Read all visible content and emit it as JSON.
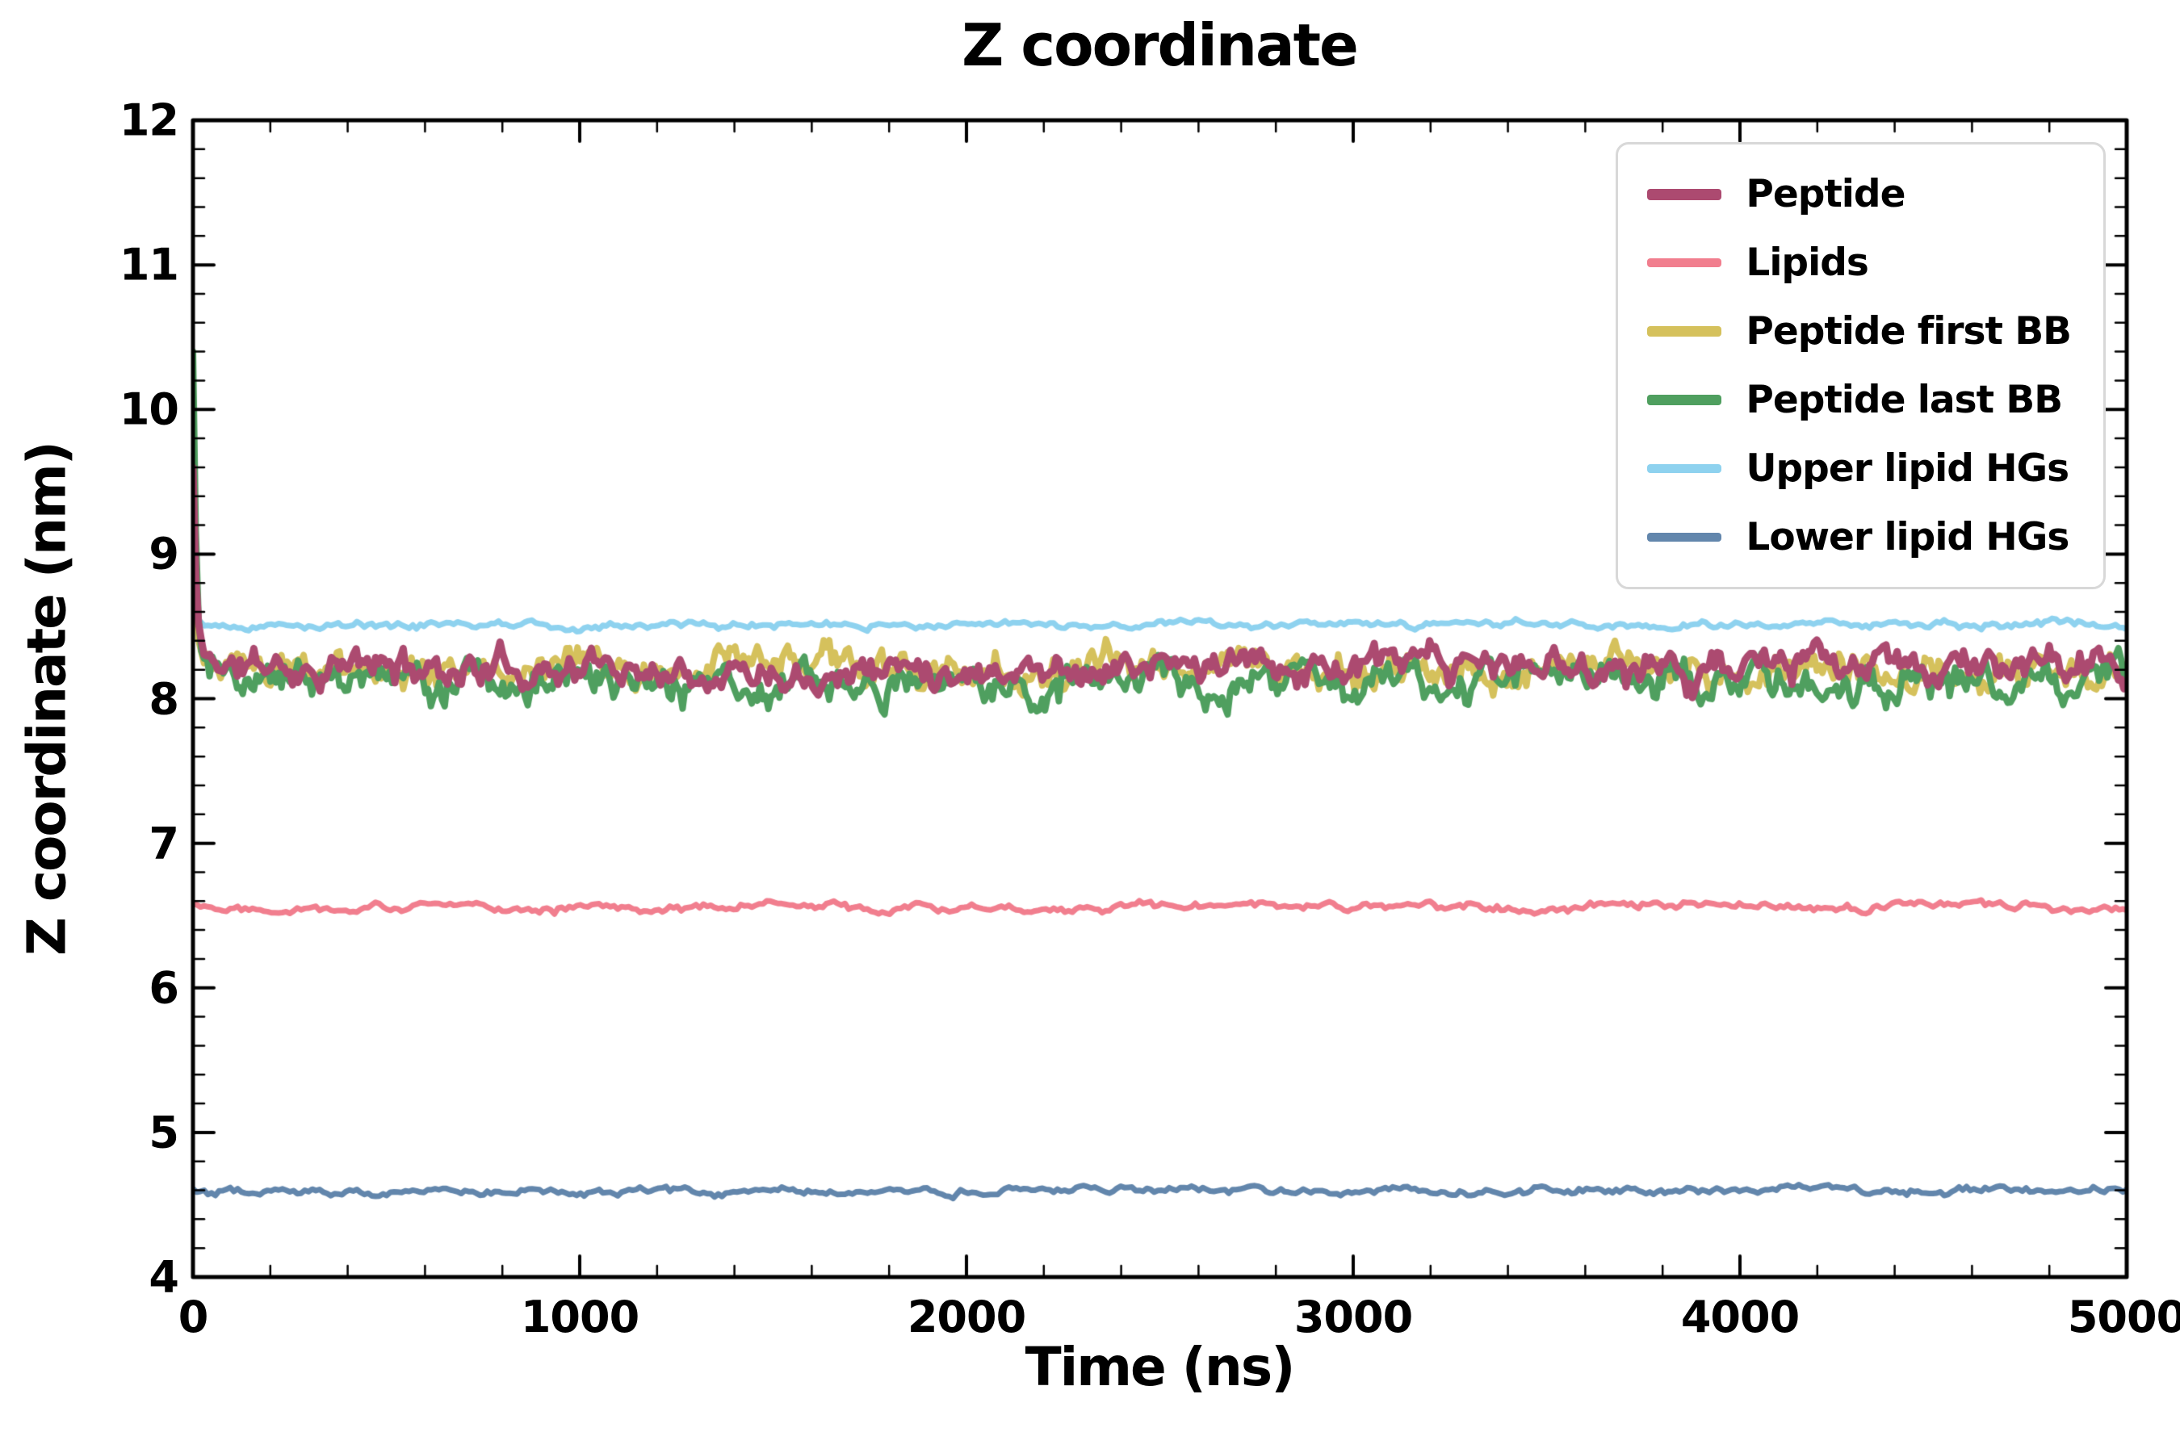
{
  "chart_data": {
    "type": "line",
    "title": "Z coordinate",
    "xlabel": "Time (ns)",
    "ylabel": "Z coordinate (nm)",
    "xlim": [
      0,
      5000
    ],
    "ylim": [
      4,
      12
    ],
    "xticks": [
      0,
      1000,
      2000,
      3000,
      4000,
      5000
    ],
    "yticks": [
      4,
      5,
      6,
      7,
      8,
      9,
      10,
      11,
      12
    ],
    "x_minor_step": 200,
    "y_minor_step": 0.2,
    "grid": false,
    "legend": {
      "position": "upper right"
    },
    "series": [
      {
        "name": "Peptide",
        "color": "#ac4a70",
        "mean": 8.22,
        "amplitude": 0.13,
        "start_value": 9.6,
        "line_width": 9,
        "n_points": 700,
        "seed": 11
      },
      {
        "name": "Lipids",
        "color": "#f17e8e",
        "mean": 6.56,
        "amplitude": 0.035,
        "start_value": 6.58,
        "line_width": 7,
        "n_points": 520,
        "seed": 22
      },
      {
        "name": "Peptide first BB",
        "color": "#d5c15c",
        "mean": 8.19,
        "amplitude": 0.14,
        "start_value": 9.35,
        "line_width": 8,
        "n_points": 700,
        "seed": 33
      },
      {
        "name": "Peptide last BB",
        "color": "#4f9f5f",
        "mean": 8.12,
        "amplitude": 0.15,
        "start_value": 10.4,
        "line_width": 8,
        "n_points": 700,
        "seed": 44
      },
      {
        "name": "Upper lipid HGs",
        "color": "#8ed2ef",
        "mean": 8.51,
        "amplitude": 0.03,
        "start_value": 8.53,
        "line_width": 7,
        "n_points": 520,
        "seed": 55
      },
      {
        "name": "Lower lipid HGs",
        "color": "#6286ac",
        "mean": 4.6,
        "amplitude": 0.03,
        "start_value": 4.61,
        "line_width": 7,
        "n_points": 520,
        "seed": 66
      }
    ],
    "draw_order": [
      4,
      5,
      1,
      2,
      3,
      0
    ]
  }
}
